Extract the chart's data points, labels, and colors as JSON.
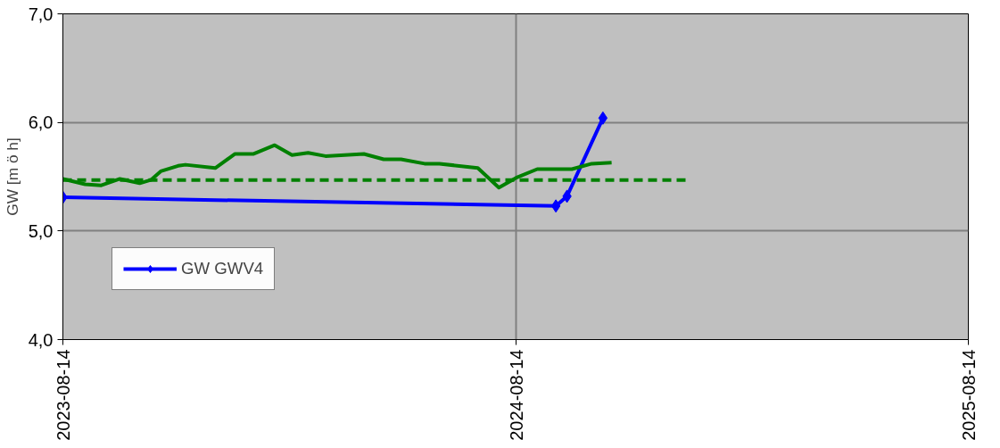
{
  "chart_data": {
    "type": "line",
    "ylabel": "GW [m ö h]",
    "xlim": [
      "2023-08-14",
      "2025-08-14"
    ],
    "xticks": [
      {
        "value": "2023-08-14",
        "label": "2023-08-14"
      },
      {
        "value": "2024-08-14",
        "label": "2024-08-14"
      },
      {
        "value": "2025-08-14",
        "label": "2025-08-14"
      }
    ],
    "ylim": [
      4,
      7
    ],
    "yticks": [
      {
        "value": 4,
        "label": "4,0"
      },
      {
        "value": 5,
        "label": "5,0"
      },
      {
        "value": 6,
        "label": "6,0"
      },
      {
        "value": 7,
        "label": "7,0"
      }
    ],
    "grid": true,
    "legend": "bottom left",
    "series": [
      {
        "name": "GW GWV4",
        "color": "#0000ff",
        "marker": "diamond",
        "x": [
          "2023-08-14",
          "2024-09-15",
          "2024-09-24",
          "2024-10-23"
        ],
        "values": [
          5.31,
          5.23,
          5.32,
          6.04
        ]
      },
      {
        "color": "#008000",
        "marker": "none",
        "x": [
          "2023-08-14",
          "2023-09-01",
          "2023-09-14",
          "2023-09-29",
          "2023-10-15",
          "2023-10-24",
          "2023-11-01",
          "2023-11-15",
          "2023-11-21",
          "2023-12-15",
          "2023-12-31",
          "2024-01-15",
          "2024-02-01",
          "2024-02-15",
          "2024-02-28",
          "2024-03-13",
          "2024-04-13",
          "2024-04-29",
          "2024-05-13",
          "2024-06-01",
          "2024-06-13",
          "2024-07-14",
          "2024-07-31",
          "2024-08-14",
          "2024-08-31",
          "2024-09-28",
          "2024-10-14",
          "2024-10-30"
        ],
        "values": [
          5.48,
          5.43,
          5.42,
          5.48,
          5.44,
          5.47,
          5.55,
          5.6,
          5.61,
          5.58,
          5.71,
          5.71,
          5.79,
          5.7,
          5.72,
          5.69,
          5.71,
          5.66,
          5.66,
          5.62,
          5.62,
          5.58,
          5.4,
          5.49,
          5.57,
          5.57,
          5.62,
          5.63
        ]
      },
      {
        "color": "#008000",
        "marker": "none",
        "line_style": "dashed",
        "x": [
          "2023-08-14",
          "2024-12-31"
        ],
        "values": [
          5.47,
          5.47
        ]
      }
    ]
  }
}
